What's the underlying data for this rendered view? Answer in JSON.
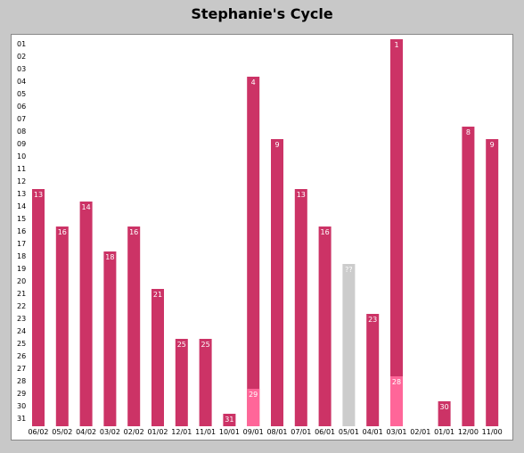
{
  "chart_data": {
    "type": "bar",
    "title": "Stephanie's Cycle",
    "xlabel": "",
    "ylabel": "",
    "y_tick_labels": [
      "01",
      "02",
      "03",
      "04",
      "05",
      "06",
      "07",
      "08",
      "09",
      "10",
      "11",
      "12",
      "13",
      "14",
      "15",
      "16",
      "17",
      "18",
      "19",
      "20",
      "21",
      "22",
      "23",
      "24",
      "25",
      "26",
      "27",
      "28",
      "29",
      "30",
      "31"
    ],
    "y_range": [
      1,
      31
    ],
    "y_inverted": true,
    "grid": false,
    "categories": [
      "06/02",
      "05/02",
      "04/02",
      "03/02",
      "02/02",
      "01/02",
      "12/01",
      "11/01",
      "10/01",
      "09/01",
      "08/01",
      "07/01",
      "06/01",
      "05/01",
      "04/01",
      "03/01",
      "02/01",
      "01/01",
      "12/00",
      "11/00"
    ],
    "bars": [
      {
        "category": "06/02",
        "start_day": 13,
        "label": "13",
        "status": "known"
      },
      {
        "category": "05/02",
        "start_day": 16,
        "label": "16",
        "status": "known"
      },
      {
        "category": "04/02",
        "start_day": 14,
        "label": "14",
        "status": "known"
      },
      {
        "category": "03/02",
        "start_day": 18,
        "label": "18",
        "status": "known"
      },
      {
        "category": "02/02",
        "start_day": 16,
        "label": "16",
        "status": "known"
      },
      {
        "category": "01/02",
        "start_day": 21,
        "label": "21",
        "status": "known"
      },
      {
        "category": "12/01",
        "start_day": 25,
        "label": "25",
        "status": "known"
      },
      {
        "category": "11/01",
        "start_day": 25,
        "label": "25",
        "status": "known"
      },
      {
        "category": "10/01",
        "start_day": 31,
        "label": "31",
        "status": "known"
      },
      {
        "category": "09/01",
        "start_day": 4,
        "label": "4",
        "status": "known",
        "second_day": 29,
        "second_label": "29"
      },
      {
        "category": "08/01",
        "start_day": 9,
        "label": "9",
        "status": "known"
      },
      {
        "category": "07/01",
        "start_day": 13,
        "label": "13",
        "status": "known"
      },
      {
        "category": "06/01",
        "start_day": 16,
        "label": "16",
        "status": "known"
      },
      {
        "category": "05/01",
        "start_day": 19,
        "label": "??",
        "status": "unknown"
      },
      {
        "category": "04/01",
        "start_day": 23,
        "label": "23",
        "status": "known"
      },
      {
        "category": "03/01",
        "start_day": 1,
        "label": "1",
        "status": "known",
        "second_day": 28,
        "second_label": "28"
      },
      {
        "category": "02/01",
        "start_day": null,
        "label": "",
        "status": "none"
      },
      {
        "category": "01/01",
        "start_day": 30,
        "label": "30",
        "status": "known"
      },
      {
        "category": "12/00",
        "start_day": 8,
        "label": "8",
        "status": "known"
      },
      {
        "category": "11/00",
        "start_day": 9,
        "label": "9",
        "status": "known"
      }
    ],
    "colors": {
      "bar": "#cc3366",
      "second_bar": "#ff6699",
      "unknown_bar": "#cccccc",
      "background": "#c8c8c8",
      "plot_background": "#ffffff"
    }
  }
}
